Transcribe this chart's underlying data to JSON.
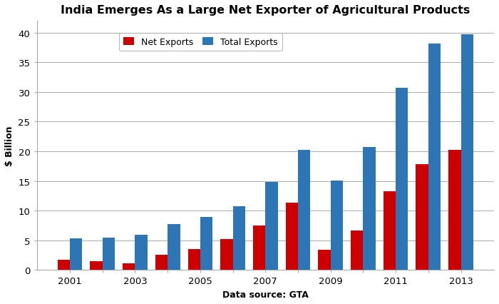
{
  "title": "India Emerges As a Large Net Exporter of Agricultural Products",
  "xlabel": "Data source: GTA",
  "ylabel": "$ Billion",
  "years": [
    2001,
    2002,
    2003,
    2004,
    2005,
    2006,
    2007,
    2008,
    2009,
    2010,
    2011,
    2012,
    2013
  ],
  "net_exports": [
    1.7,
    1.5,
    1.1,
    2.6,
    3.5,
    5.2,
    7.5,
    11.3,
    3.4,
    6.7,
    13.3,
    17.8,
    20.2
  ],
  "total_exports": [
    5.3,
    5.5,
    6.0,
    7.7,
    8.9,
    10.8,
    14.8,
    20.2,
    15.1,
    20.7,
    30.7,
    38.2,
    39.7
  ],
  "net_exports_color": "#CC0000",
  "total_exports_color": "#2E75B6",
  "ylim": [
    0,
    42
  ],
  "yticks": [
    0,
    5,
    10,
    15,
    20,
    25,
    30,
    35,
    40
  ],
  "xtick_years": [
    2001,
    2003,
    2005,
    2007,
    2009,
    2011,
    2013
  ],
  "legend_labels": [
    "Net Exports",
    "Total Exports"
  ],
  "bar_width": 0.38,
  "background_color": "#FFFFFF",
  "grid_color": "#AAAAAA",
  "title_fontsize": 11.5,
  "label_fontsize": 9,
  "tick_fontsize": 9.5
}
